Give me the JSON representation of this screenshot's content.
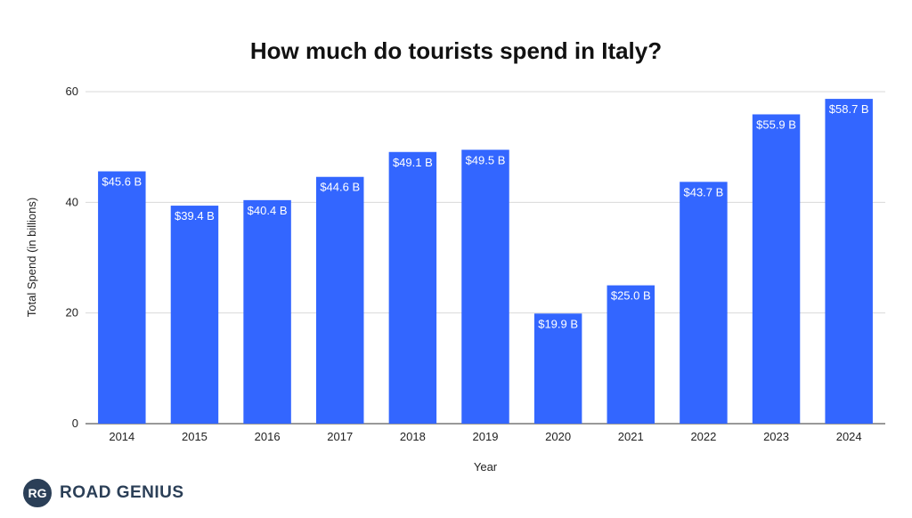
{
  "chart_data": {
    "type": "bar",
    "title": "How much do tourists spend in Italy?",
    "xlabel": "Year",
    "ylabel": "Total Spend (in billions)",
    "categories": [
      "2014",
      "2015",
      "2016",
      "2017",
      "2018",
      "2019",
      "2020",
      "2021",
      "2022",
      "2023",
      "2024"
    ],
    "values": [
      45.6,
      39.4,
      40.4,
      44.6,
      49.1,
      49.5,
      19.9,
      25.0,
      43.7,
      55.9,
      58.7
    ],
    "data_labels": [
      "$45.6 B",
      "$39.4 B",
      "$40.4 B",
      "$44.6 B",
      "$49.1 B",
      "$49.5 B",
      "$19.9 B",
      "$25.0 B",
      "$43.7 B",
      "$55.9 B",
      "$58.7 B"
    ],
    "ylim": [
      0,
      60
    ],
    "yticks": [
      0,
      20,
      40,
      60
    ],
    "grid": true,
    "legend": "none",
    "bar_color": "#3366ff"
  },
  "branding": {
    "logo_mark": "RG",
    "logo_text": "ROAD GENIUS",
    "logo_color": "#2b3f57"
  }
}
